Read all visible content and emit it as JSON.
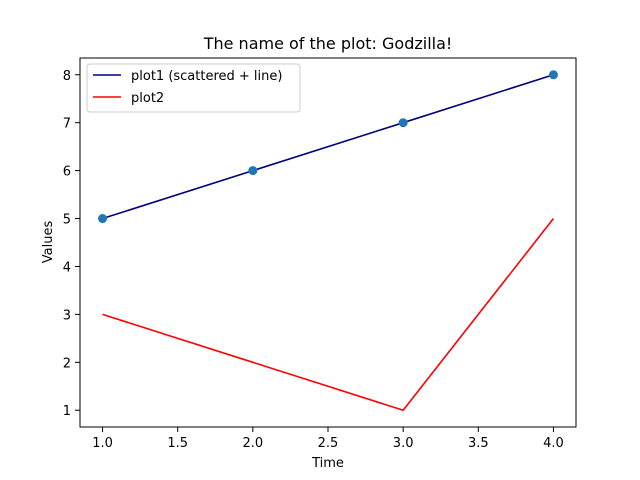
{
  "chart_data": {
    "type": "line",
    "title": "The name of the plot: Godzilla!",
    "xlabel": "Time",
    "ylabel": "Values",
    "xlim": [
      0.85,
      4.15
    ],
    "ylim": [
      0.65,
      8.35
    ],
    "xticks": [
      1.0,
      1.5,
      2.0,
      2.5,
      3.0,
      3.5,
      4.0
    ],
    "xtick_labels": [
      "1.0",
      "1.5",
      "2.0",
      "2.5",
      "3.0",
      "3.5",
      "4.0"
    ],
    "yticks": [
      1,
      2,
      3,
      4,
      5,
      6,
      7,
      8
    ],
    "ytick_labels": [
      "1",
      "2",
      "3",
      "4",
      "5",
      "6",
      "7",
      "8"
    ],
    "grid": false,
    "legend_position": "top-left",
    "x": [
      1,
      2,
      3,
      4
    ],
    "series": [
      {
        "name": "plot1 (scattered + line)",
        "values": [
          5,
          6,
          7,
          8
        ],
        "color": "#000080",
        "markers": true,
        "marker_color": "#1f77b4"
      },
      {
        "name": "plot2",
        "values": [
          3,
          2,
          1,
          5
        ],
        "color": "#ff0000",
        "markers": false
      }
    ]
  }
}
